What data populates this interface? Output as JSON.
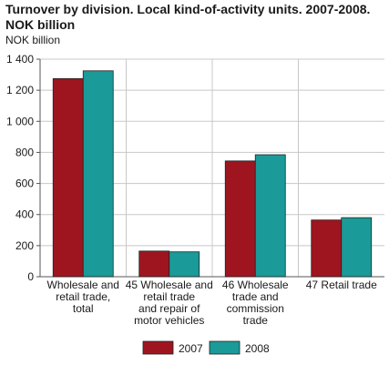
{
  "title_lines": [
    "Turnover by division. Local kind-of-activity units. 2007-2008.",
    "NOK billion"
  ],
  "colors": {
    "2007": "#9e1520",
    "2008": "#1a9a98",
    "grid": "#c8c8c8",
    "axis": "#555555"
  },
  "chart_data": {
    "type": "bar",
    "title": "Turnover by division. Local kind-of-activity units. 2007-2008. NOK billion",
    "ylabel": "NOK billion",
    "xlabel": "",
    "ylim": [
      0,
      1400
    ],
    "yticks": [
      "0",
      "200",
      "400",
      "600",
      "800",
      "1 000",
      "1 200",
      "1 400"
    ],
    "ytick_values": [
      0,
      200,
      400,
      600,
      800,
      1000,
      1200,
      1400
    ],
    "categories": [
      [
        "Wholesale and",
        "retail trade,",
        "total"
      ],
      [
        "45 Wholesale and",
        "retail trade",
        "and repair of",
        "motor vehicles"
      ],
      [
        "46 Wholesale",
        "trade and",
        "commission",
        "trade"
      ],
      [
        "47 Retail trade"
      ]
    ],
    "series": [
      {
        "name": "2007",
        "values": [
          1275,
          165,
          745,
          365
        ]
      },
      {
        "name": "2008",
        "values": [
          1325,
          160,
          785,
          380
        ]
      }
    ],
    "grid": true,
    "legend_position": "bottom"
  }
}
